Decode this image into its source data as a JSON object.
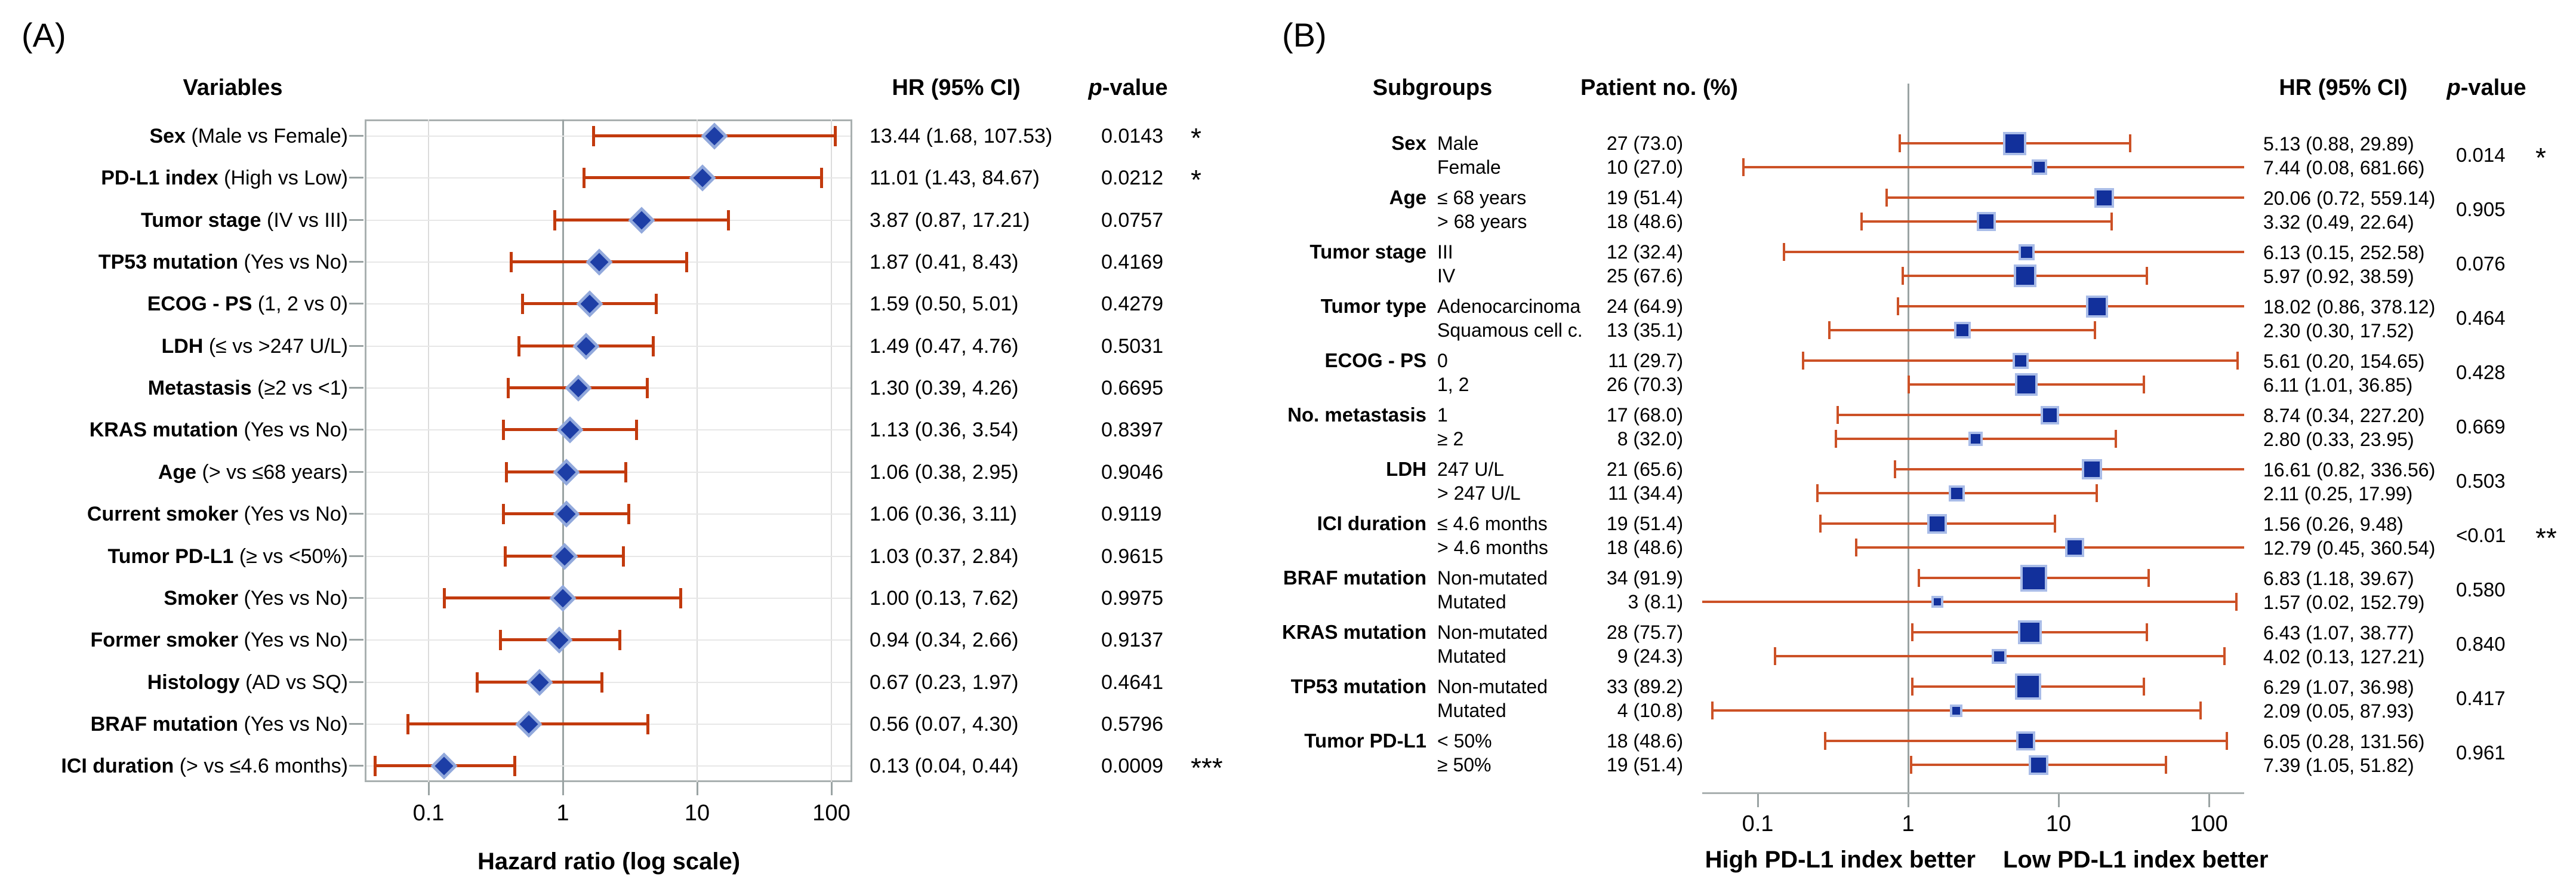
{
  "colors": {
    "bar_a": "#c23a0d",
    "marker_a": "#1d3ea6",
    "marker_a_halo": "#92a9dc",
    "bar_b": "#cc5126",
    "marker_b": "#12309b",
    "marker_b_halo": "#a9bce8",
    "grid": "#dcdcdc",
    "row_guide": "#e7e7e7",
    "axis": "#a9b0b0",
    "ref_line": "#9aa3a3",
    "text": "#000000",
    "background": "#ffffff"
  },
  "figure": {
    "panel_a": {
      "tag": "(A)",
      "columns": {
        "variables": "Variables",
        "hr": "HR (95% CI)",
        "p_italic": "p",
        "p_rest": "-value"
      }
    },
    "panel_b": {
      "tag": "(B)",
      "columns": {
        "subgroups": "Subgroups",
        "patients": "Patient no. (%)",
        "hr": "HR (95% CI)",
        "p_italic": "p",
        "p_rest": "-value"
      }
    }
  },
  "chart_data": [
    {
      "type": "forest",
      "panel": "A",
      "xlabel": "Hazard ratio (log scale)",
      "x_scale": "log",
      "x_ticks": [
        "0.1",
        "1",
        "10",
        "100"
      ],
      "x_tick_values": [
        0.1,
        1,
        10,
        100
      ],
      "xlim": [
        0.033,
        140
      ],
      "reference_line": 1,
      "rows": [
        {
          "variable": "Sex",
          "comparison": "(Male vs Female)",
          "hr": 13.44,
          "ci_low": 1.68,
          "ci_high": 107.53,
          "hr_text": "13.44 (1.68, 107.53)",
          "p": "0.0143",
          "sig": "*"
        },
        {
          "variable": "PD-L1 index",
          "comparison": "(High vs Low)",
          "hr": 11.01,
          "ci_low": 1.43,
          "ci_high": 84.67,
          "hr_text": "11.01 (1.43, 84.67)",
          "p": "0.0212",
          "sig": "*"
        },
        {
          "variable": "Tumor stage",
          "comparison": "(IV vs III)",
          "hr": 3.87,
          "ci_low": 0.87,
          "ci_high": 17.21,
          "hr_text": "3.87 (0.87, 17.21)",
          "p": "0.0757",
          "sig": ""
        },
        {
          "variable": "TP53 mutation",
          "comparison": "(Yes vs No)",
          "hr": 1.87,
          "ci_low": 0.41,
          "ci_high": 8.43,
          "hr_text": "1.87 (0.41, 8.43)",
          "p": "0.4169",
          "sig": ""
        },
        {
          "variable": "ECOG - PS",
          "comparison": "(1, 2 vs 0)",
          "hr": 1.59,
          "ci_low": 0.5,
          "ci_high": 5.01,
          "hr_text": "1.59 (0.50, 5.01)",
          "p": "0.4279",
          "sig": ""
        },
        {
          "variable": "LDH",
          "comparison": "(≤ vs >247 U/L)",
          "hr": 1.49,
          "ci_low": 0.47,
          "ci_high": 4.76,
          "hr_text": "1.49 (0.47, 4.76)",
          "p": "0.5031",
          "sig": ""
        },
        {
          "variable": "Metastasis",
          "comparison": "(≥2 vs <1)",
          "hr": 1.3,
          "ci_low": 0.39,
          "ci_high": 4.26,
          "hr_text": "1.30 (0.39, 4.26)",
          "p": "0.6695",
          "sig": ""
        },
        {
          "variable": "KRAS mutation",
          "comparison": "(Yes vs No)",
          "hr": 1.13,
          "ci_low": 0.36,
          "ci_high": 3.54,
          "hr_text": "1.13 (0.36, 3.54)",
          "p": "0.8397",
          "sig": ""
        },
        {
          "variable": "Age",
          "comparison": "(> vs ≤68 years)",
          "hr": 1.06,
          "ci_low": 0.38,
          "ci_high": 2.95,
          "hr_text": "1.06 (0.38, 2.95)",
          "p": "0.9046",
          "sig": ""
        },
        {
          "variable": "Current smoker",
          "comparison": "(Yes vs No)",
          "hr": 1.06,
          "ci_low": 0.36,
          "ci_high": 3.11,
          "hr_text": "1.06 (0.36, 3.11)",
          "p": "0.9119",
          "sig": ""
        },
        {
          "variable": "Tumor PD-L1",
          "comparison": "(≥ vs <50%)",
          "hr": 1.03,
          "ci_low": 0.37,
          "ci_high": 2.84,
          "hr_text": "1.03 (0.37, 2.84)",
          "p": "0.9615",
          "sig": ""
        },
        {
          "variable": "Smoker",
          "comparison": "(Yes vs No)",
          "hr": 1.0,
          "ci_low": 0.13,
          "ci_high": 7.62,
          "hr_text": "1.00 (0.13, 7.62)",
          "p": "0.9975",
          "sig": ""
        },
        {
          "variable": "Former smoker",
          "comparison": "(Yes vs No)",
          "hr": 0.94,
          "ci_low": 0.34,
          "ci_high": 2.66,
          "hr_text": "0.94 (0.34, 2.66)",
          "p": "0.9137",
          "sig": ""
        },
        {
          "variable": "Histology",
          "comparison": "(AD vs SQ)",
          "hr": 0.67,
          "ci_low": 0.23,
          "ci_high": 1.97,
          "hr_text": "0.67 (0.23, 1.97)",
          "p": "0.4641",
          "sig": ""
        },
        {
          "variable": "BRAF mutation",
          "comparison": "(Yes vs No)",
          "hr": 0.56,
          "ci_low": 0.07,
          "ci_high": 4.3,
          "hr_text": "0.56 (0.07, 4.30)",
          "p": "0.5796",
          "sig": ""
        },
        {
          "variable": "ICI duration",
          "comparison": "(> vs ≤4.6 months)",
          "hr": 0.13,
          "ci_low": 0.04,
          "ci_high": 0.44,
          "hr_text": "0.13 (0.04, 0.44)",
          "p": "0.0009",
          "sig": "***"
        }
      ]
    },
    {
      "type": "forest",
      "panel": "B",
      "x_scale": "log",
      "x_ticks": [
        "0.1",
        "1",
        "10",
        "100"
      ],
      "x_tick_values": [
        0.1,
        1,
        10,
        100
      ],
      "xlim": [
        0.036,
        172
      ],
      "reference_line": 1,
      "footer_left": "High PD-L1 index better",
      "footer_right": "Low PD-L1 index better",
      "groups": [
        {
          "name": "Sex",
          "p": "0.014",
          "sig": "*",
          "levels": [
            {
              "label": "Male",
              "n": 27,
              "n_text": "27 (73.0)",
              "hr": 5.13,
              "ci_low": 0.88,
              "ci_high": 29.89,
              "hr_text": "5.13 (0.88, 29.89)"
            },
            {
              "label": "Female",
              "n": 10,
              "n_text": "10 (27.0)",
              "hr": 7.44,
              "ci_low": 0.08,
              "ci_high": 681.66,
              "hr_text": "7.44 (0.08, 681.66)"
            }
          ]
        },
        {
          "name": "Age",
          "p": "0.905",
          "sig": "",
          "levels": [
            {
              "label": "≤ 68 years",
              "n": 19,
              "n_text": "19 (51.4)",
              "hr": 20.06,
              "ci_low": 0.72,
              "ci_high": 559.14,
              "hr_text": "20.06 (0.72, 559.14)"
            },
            {
              "label": "> 68 years",
              "n": 18,
              "n_text": "18 (48.6)",
              "hr": 3.32,
              "ci_low": 0.49,
              "ci_high": 22.64,
              "hr_text": "3.32 (0.49, 22.64)"
            }
          ]
        },
        {
          "name": "Tumor stage",
          "p": "0.076",
          "sig": "",
          "levels": [
            {
              "label": "III",
              "n": 12,
              "n_text": "12 (32.4)",
              "hr": 6.13,
              "ci_low": 0.15,
              "ci_high": 252.58,
              "hr_text": "6.13 (0.15, 252.58)"
            },
            {
              "label": "IV",
              "n": 25,
              "n_text": "25 (67.6)",
              "hr": 5.97,
              "ci_low": 0.92,
              "ci_high": 38.59,
              "hr_text": "5.97 (0.92, 38.59)"
            }
          ]
        },
        {
          "name": "Tumor type",
          "p": "0.464",
          "sig": "",
          "levels": [
            {
              "label": "Adenocarcinoma",
              "n": 24,
              "n_text": "24 (64.9)",
              "hr": 18.02,
              "ci_low": 0.86,
              "ci_high": 378.12,
              "hr_text": "18.02 (0.86, 378.12)"
            },
            {
              "label": "Squamous cell c.",
              "n": 13,
              "n_text": "13 (35.1)",
              "hr": 2.3,
              "ci_low": 0.3,
              "ci_high": 17.52,
              "hr_text": "2.30 (0.30, 17.52)"
            }
          ]
        },
        {
          "name": "ECOG - PS",
          "p": "0.428",
          "sig": "",
          "levels": [
            {
              "label": "0",
              "n": 11,
              "n_text": "11 (29.7)",
              "hr": 5.61,
              "ci_low": 0.2,
              "ci_high": 154.65,
              "hr_text": "5.61 (0.20, 154.65)"
            },
            {
              "label": "1, 2",
              "n": 26,
              "n_text": "26 (70.3)",
              "hr": 6.11,
              "ci_low": 1.01,
              "ci_high": 36.85,
              "hr_text": "6.11 (1.01, 36.85)"
            }
          ]
        },
        {
          "name": "No. metastasis",
          "p": "0.669",
          "sig": "",
          "levels": [
            {
              "label": "1",
              "n": 17,
              "n_text": "17 (68.0)",
              "hr": 8.74,
              "ci_low": 0.34,
              "ci_high": 227.2,
              "hr_text": "8.74 (0.34, 227.20)"
            },
            {
              "label": "≥ 2",
              "n": 8,
              "n_text": "8 (32.0)",
              "hr": 2.8,
              "ci_low": 0.33,
              "ci_high": 23.95,
              "hr_text": "2.80 (0.33, 23.95)"
            }
          ]
        },
        {
          "name": "LDH",
          "p": "0.503",
          "sig": "",
          "levels": [
            {
              "label": "247 U/L",
              "n": 21,
              "n_text": "21 (65.6)",
              "hr": 16.61,
              "ci_low": 0.82,
              "ci_high": 336.56,
              "hr_text": "16.61 (0.82, 336.56)"
            },
            {
              "label": "> 247 U/L",
              "n": 11,
              "n_text": "11 (34.4)",
              "hr": 2.11,
              "ci_low": 0.25,
              "ci_high": 17.99,
              "hr_text": "2.11 (0.25, 17.99)"
            }
          ]
        },
        {
          "name": "ICI duration",
          "p": "<0.01",
          "sig": "**",
          "levels": [
            {
              "label": "≤ 4.6 months",
              "n": 19,
              "n_text": "19 (51.4)",
              "hr": 1.56,
              "ci_low": 0.26,
              "ci_high": 9.48,
              "hr_text": "1.56 (0.26, 9.48)"
            },
            {
              "label": "> 4.6 months",
              "n": 18,
              "n_text": "18 (48.6)",
              "hr": 12.79,
              "ci_low": 0.45,
              "ci_high": 360.54,
              "hr_text": "12.79 (0.45, 360.54)"
            }
          ]
        },
        {
          "name": "BRAF mutation",
          "p": "0.580",
          "sig": "",
          "levels": [
            {
              "label": "Non-mutated",
              "n": 34,
              "n_text": "34 (91.9)",
              "hr": 6.83,
              "ci_low": 1.18,
              "ci_high": 39.67,
              "hr_text": "6.83 (1.18, 39.67)"
            },
            {
              "label": "Mutated",
              "n": 3,
              "n_text": "3 (8.1)",
              "hr": 1.57,
              "ci_low": 0.02,
              "ci_high": 152.79,
              "hr_text": "1.57 (0.02, 152.79)"
            }
          ]
        },
        {
          "name": "KRAS mutation",
          "p": "0.840",
          "sig": "",
          "levels": [
            {
              "label": "Non-mutated",
              "n": 28,
              "n_text": "28 (75.7)",
              "hr": 6.43,
              "ci_low": 1.07,
              "ci_high": 38.77,
              "hr_text": "6.43 (1.07, 38.77)"
            },
            {
              "label": "Mutated",
              "n": 9,
              "n_text": "9 (24.3)",
              "hr": 4.02,
              "ci_low": 0.13,
              "ci_high": 127.21,
              "hr_text": "4.02 (0.13, 127.21)"
            }
          ]
        },
        {
          "name": "TP53 mutation",
          "p": "0.417",
          "sig": "",
          "levels": [
            {
              "label": "Non-mutated",
              "n": 33,
              "n_text": "33 (89.2)",
              "hr": 6.29,
              "ci_low": 1.07,
              "ci_high": 36.98,
              "hr_text": "6.29 (1.07, 36.98)"
            },
            {
              "label": "Mutated",
              "n": 4,
              "n_text": "4 (10.8)",
              "hr": 2.09,
              "ci_low": 0.05,
              "ci_high": 87.93,
              "hr_text": "2.09 (0.05, 87.93)"
            }
          ]
        },
        {
          "name": "Tumor PD-L1",
          "p": "0.961",
          "sig": "",
          "levels": [
            {
              "label": "< 50%",
              "n": 18,
              "n_text": "18 (48.6)",
              "hr": 6.05,
              "ci_low": 0.28,
              "ci_high": 131.56,
              "hr_text": "6.05 (0.28, 131.56)"
            },
            {
              "label": "≥ 50%",
              "n": 19,
              "n_text": "19 (51.4)",
              "hr": 7.39,
              "ci_low": 1.05,
              "ci_high": 51.82,
              "hr_text": "7.39 (1.05, 51.82)"
            }
          ]
        }
      ]
    }
  ]
}
